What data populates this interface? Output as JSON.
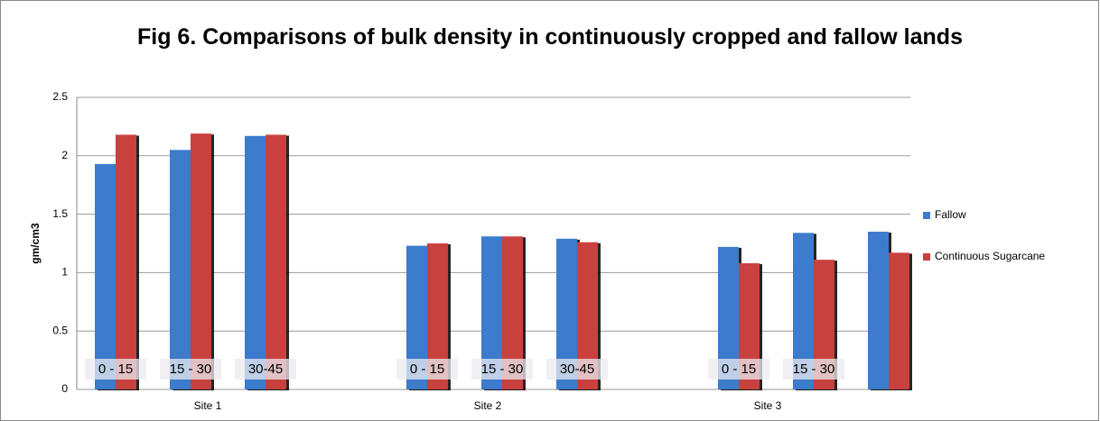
{
  "chart_data": {
    "type": "bar",
    "title": "Fig 6. Comparisons of bulk density in continuously cropped and fallow lands",
    "y_label": "gm/cm3",
    "categories": [
      "0 - 15",
      "15 - 30",
      "30-45",
      "0 - 15",
      "15 - 30",
      "30-45",
      "0 - 15",
      "15 - 30",
      null
    ],
    "groups": [
      "Site 1",
      "Site 2",
      "Site 3"
    ],
    "series": [
      {
        "name": "Fallow",
        "color": "#3d7bcc",
        "values": [
          1.93,
          2.05,
          2.17,
          1.23,
          1.31,
          1.29,
          1.22,
          1.34,
          1.35
        ]
      },
      {
        "name": "Continuous Sugarcane",
        "color": "#c8413e",
        "values": [
          2.18,
          2.19,
          2.18,
          1.25,
          1.31,
          1.26,
          1.08,
          1.11,
          1.17
        ]
      }
    ],
    "ylim": [
      0,
      2.5
    ],
    "yticks": [
      0,
      0.5,
      1,
      1.5,
      2,
      2.5
    ],
    "grid": true,
    "legend": "right"
  }
}
